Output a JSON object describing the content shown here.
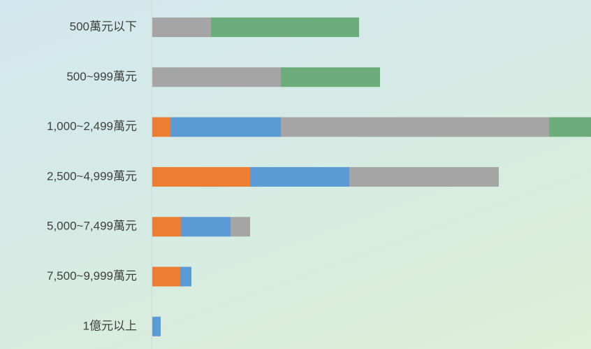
{
  "chart_data": {
    "type": "stacked-bar-horizontal",
    "categories": [
      "500萬元以下",
      "500~999萬元",
      "1,000~2,499萬元",
      "2,500~4,999萬元",
      "5,000~7,499萬元",
      "7,500~9,999萬元",
      "1億元以上"
    ],
    "series": [
      {
        "color": "#ed7d31",
        "values": [
          0,
          0,
          26,
          140,
          41,
          40,
          0
        ]
      },
      {
        "color": "#5b9bd5",
        "values": [
          0,
          0,
          158,
          142,
          71,
          16,
          12
        ]
      },
      {
        "color": "#a5a5a5",
        "values": [
          84,
          184,
          384,
          214,
          28,
          0,
          0
        ]
      },
      {
        "color": "#6dad7c",
        "values": [
          212,
          142,
          60,
          0,
          0,
          0,
          0
        ]
      }
    ],
    "xlim": [
      0,
      628
    ]
  }
}
